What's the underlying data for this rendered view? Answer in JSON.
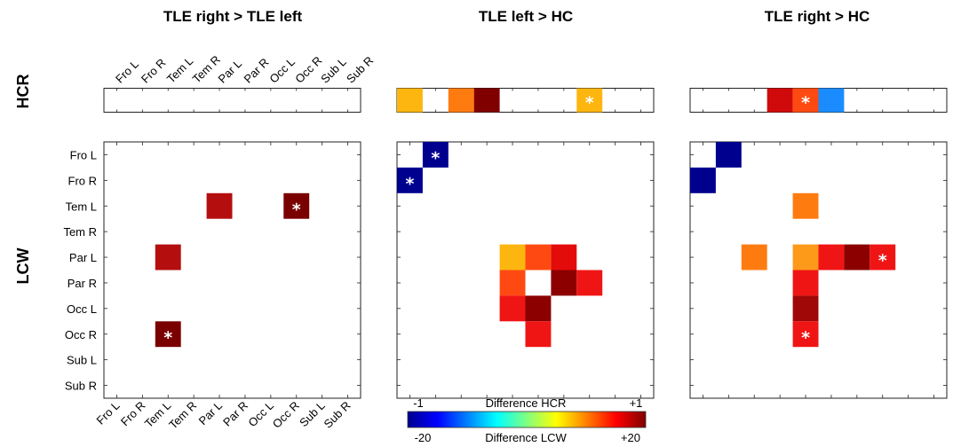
{
  "row_labels": {
    "hcr": "HCR",
    "lcw": "LCW"
  },
  "regions": [
    "Fro L",
    "Fro R",
    "Tem L",
    "Tem R",
    "Par L",
    "Par R",
    "Occ L",
    "Occ R",
    "Sub L",
    "Sub R"
  ],
  "colorbar": {
    "hcr_label": "Difference HCR",
    "hcr_min": "-1",
    "hcr_max": "+1",
    "lcw_label": "Difference LCW",
    "lcw_min": "-20",
    "lcw_max": "+20",
    "colormap": "jet",
    "stops": [
      "#00008f",
      "#0000ff",
      "#0080ff",
      "#00ffff",
      "#80ff80",
      "#ffff00",
      "#ff8000",
      "#ff0000",
      "#800000"
    ]
  },
  "chart_data": [
    {
      "type": "heatmap",
      "title": "TLE right > TLE left",
      "hcr": [],
      "lcw": [
        {
          "row": 2,
          "col": 4,
          "color": "#b50e0e",
          "star": false
        },
        {
          "row": 2,
          "col": 7,
          "color": "#7a0000",
          "star": true
        },
        {
          "row": 4,
          "col": 2,
          "color": "#b50e0e",
          "star": false
        },
        {
          "row": 7,
          "col": 2,
          "color": "#7a0000",
          "star": true
        }
      ]
    },
    {
      "type": "heatmap",
      "title": "TLE left > HC",
      "hcr": [
        {
          "col": 0,
          "color": "#fdb60f",
          "star": false
        },
        {
          "col": 2,
          "color": "#fe7b10",
          "star": false
        },
        {
          "col": 3,
          "color": "#800000",
          "star": false
        },
        {
          "col": 7,
          "color": "#fdb60f",
          "star": true
        }
      ],
      "lcw": [
        {
          "row": 0,
          "col": 1,
          "color": "#00008f",
          "star": true
        },
        {
          "row": 1,
          "col": 0,
          "color": "#00008f",
          "star": true
        },
        {
          "row": 4,
          "col": 4,
          "color": "#fdb60f",
          "star": false
        },
        {
          "row": 4,
          "col": 5,
          "color": "#fe4a12",
          "star": false
        },
        {
          "row": 4,
          "col": 6,
          "color": "#e40b0b",
          "star": false
        },
        {
          "row": 5,
          "col": 4,
          "color": "#fe4a12",
          "star": false
        },
        {
          "row": 5,
          "col": 6,
          "color": "#8c0000",
          "star": false
        },
        {
          "row": 5,
          "col": 7,
          "color": "#f01515",
          "star": false
        },
        {
          "row": 6,
          "col": 4,
          "color": "#f01515",
          "star": false
        },
        {
          "row": 6,
          "col": 5,
          "color": "#8c0000",
          "star": false
        },
        {
          "row": 7,
          "col": 5,
          "color": "#f01515",
          "star": false
        }
      ]
    },
    {
      "type": "heatmap",
      "title": "TLE right > HC",
      "hcr": [
        {
          "col": 3,
          "color": "#d00a0a",
          "star": false
        },
        {
          "col": 4,
          "color": "#fe4a12",
          "star": true
        },
        {
          "col": 5,
          "color": "#1a8cff",
          "star": false
        }
      ],
      "lcw": [
        {
          "row": 0,
          "col": 1,
          "color": "#00008f",
          "star": false
        },
        {
          "row": 1,
          "col": 0,
          "color": "#00008f",
          "star": false
        },
        {
          "row": 2,
          "col": 4,
          "color": "#fe7b10",
          "star": false
        },
        {
          "row": 4,
          "col": 2,
          "color": "#fe7b10",
          "star": false
        },
        {
          "row": 4,
          "col": 4,
          "color": "#fe9a1a",
          "star": false
        },
        {
          "row": 4,
          "col": 5,
          "color": "#f01515",
          "star": false
        },
        {
          "row": 4,
          "col": 6,
          "color": "#8c0000",
          "star": false
        },
        {
          "row": 4,
          "col": 7,
          "color": "#f01515",
          "star": true
        },
        {
          "row": 5,
          "col": 4,
          "color": "#f01515",
          "star": false
        },
        {
          "row": 6,
          "col": 4,
          "color": "#a00808",
          "star": false
        },
        {
          "row": 7,
          "col": 4,
          "color": "#f01515",
          "star": true
        }
      ]
    }
  ]
}
